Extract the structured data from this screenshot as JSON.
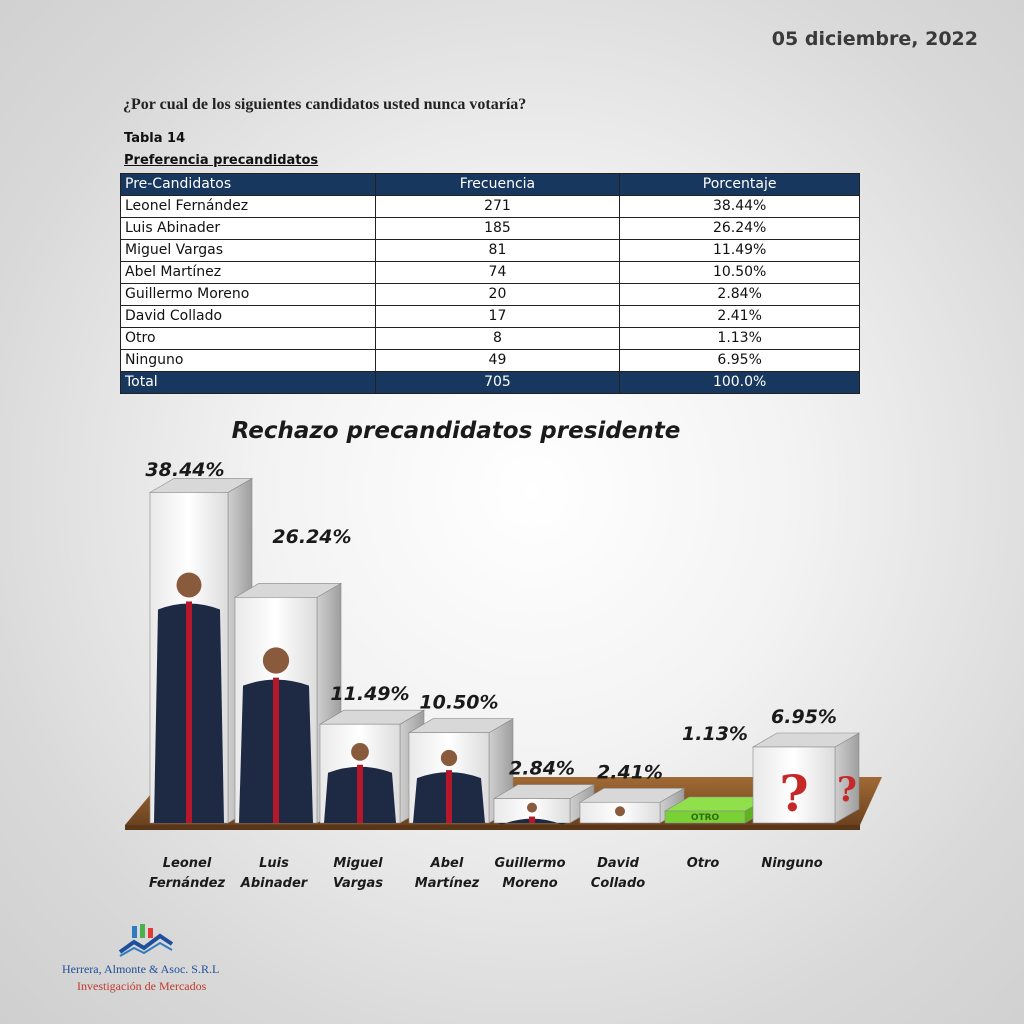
{
  "header": {
    "date": "05 diciembre, 2022",
    "question": "¿Por cual de los siguientes candidatos usted nunca votaría?"
  },
  "table": {
    "label": "Tabla 14",
    "subtitle": "Preferencia precandidatos",
    "columns": [
      "Pre-Candidatos",
      "Frecuencia",
      "Porcentaje"
    ],
    "rows": [
      [
        "Leonel Fernández",
        "271",
        "38.44%"
      ],
      [
        "Luis Abinader",
        "185",
        "26.24%"
      ],
      [
        "Miguel Vargas",
        "81",
        "11.49%"
      ],
      [
        "Abel Martínez",
        "74",
        "10.50%"
      ],
      [
        "Guillermo Moreno",
        "20",
        "2.84%"
      ],
      [
        "David Collado",
        "17",
        "2.41%"
      ],
      [
        "Otro",
        "8",
        "1.13%"
      ],
      [
        "Ninguno",
        "49",
        "6.95%"
      ]
    ],
    "total": [
      "Total",
      "705",
      "100.0%"
    ]
  },
  "chart_data": {
    "type": "bar",
    "title": "Rechazo precandidatos presidente",
    "categories": [
      "Leonel Fernández",
      "Luis Abinader",
      "Miguel Vargas",
      "Abel Martínez",
      "Guillermo Moreno",
      "David Collado",
      "Otro",
      "Ninguno"
    ],
    "category_lines": [
      [
        "Leonel",
        "Fernández"
      ],
      [
        "Luis",
        "Abinader"
      ],
      [
        "Miguel",
        "Vargas"
      ],
      [
        "Abel",
        "Martínez"
      ],
      [
        "Guillermo",
        "Moreno"
      ],
      [
        "David",
        "Collado"
      ],
      [
        "Otro"
      ],
      [
        "Ninguno"
      ]
    ],
    "values": [
      38.44,
      26.24,
      11.49,
      10.5,
      2.84,
      2.41,
      1.13,
      6.95
    ],
    "labels": [
      "38.44%",
      "26.24%",
      "11.49%",
      "10.50%",
      "2.84%",
      "2.41%",
      "1.13%",
      "6.95%"
    ],
    "otro_box_text": "OTRO",
    "ninguno_box_text": "?",
    "bar_color": "#ffffff",
    "floor_color": "#8b5a2b"
  },
  "footer": {
    "company": "Herrera, Almonte & Asoc. S.R.L",
    "tagline": "Investigación de Mercados"
  }
}
